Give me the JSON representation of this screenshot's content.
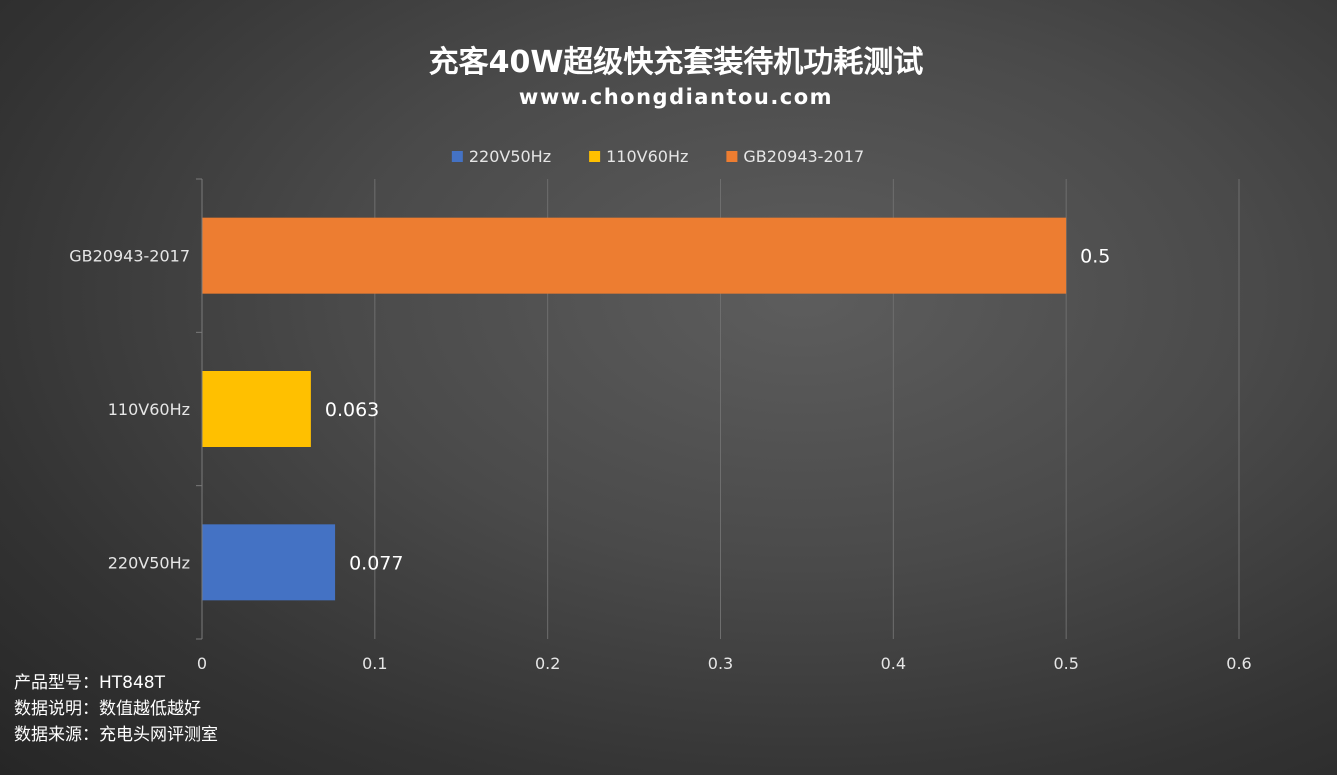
{
  "chart_data": {
    "type": "bar",
    "orientation": "horizontal",
    "title": "充客40W超级快充套装待机功耗测试",
    "subtitle": "www.chongdiantou.com",
    "categories": [
      "220V50Hz",
      "110V60Hz",
      "GB20943-2017"
    ],
    "series": [
      {
        "name": "220V50Hz",
        "color": "#4472c4",
        "values": [
          0.077,
          null,
          null
        ]
      },
      {
        "name": "110V60Hz",
        "color": "#ffc000",
        "values": [
          null,
          0.063,
          null
        ]
      },
      {
        "name": "GB20943-2017",
        "color": "#ed7d31",
        "values": [
          null,
          null,
          0.5
        ]
      }
    ],
    "data_labels": [
      "0.077",
      "0.063",
      "0.5"
    ],
    "xlim": [
      0,
      0.6
    ],
    "x_ticks": [
      "0",
      "0.1",
      "0.2",
      "0.3",
      "0.4",
      "0.5",
      "0.6"
    ],
    "grid": true,
    "legend_position": "top"
  },
  "footnotes": {
    "model": "产品型号：HT848T",
    "note": "数据说明：数值越低越好",
    "source": "数据来源：充电头网评测室"
  }
}
